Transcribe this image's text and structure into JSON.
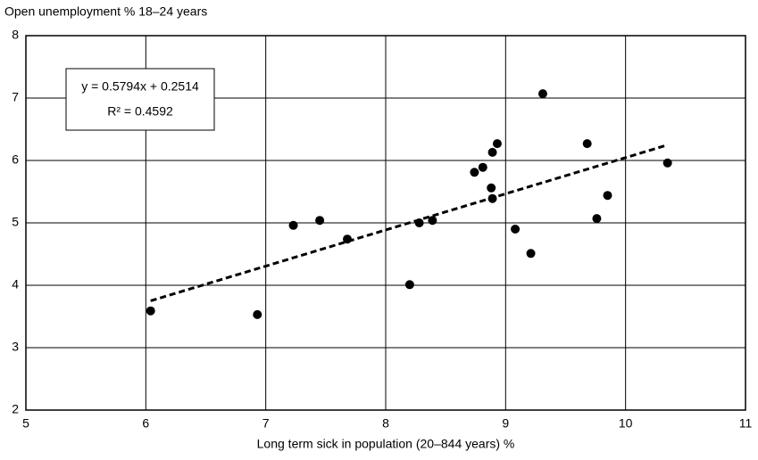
{
  "chart_data": {
    "type": "scatter",
    "title": "Open unemployment % 18–24 years",
    "x_label": "Long term sick in population (20–844 years) %",
    "series": [
      {
        "color": "#000000",
        "x": [
          6.04,
          6.93,
          7.23,
          7.45,
          7.68,
          8.2,
          8.28,
          8.39,
          8.74,
          8.81,
          8.89,
          8.93,
          8.88,
          8.89,
          9.08,
          9.21,
          9.31,
          9.68,
          9.76,
          9.85,
          10.35
        ],
        "values": [
          3.59,
          3.53,
          4.96,
          5.04,
          4.74,
          4.01,
          5.0,
          5.04,
          5.81,
          5.89,
          6.13,
          6.27,
          5.56,
          5.39,
          4.9,
          4.51,
          7.07,
          6.27,
          5.07,
          5.44,
          5.96
        ]
      }
    ],
    "trendline": {
      "slope": 0.5794,
      "intercept": 0.2514,
      "equation": "y = 0.5794x + 0.2514",
      "r_squared": 0.4592,
      "r_squared_label": "R² = 0.4592"
    },
    "xlim": [
      5,
      11
    ],
    "xticks": [
      5,
      6,
      7,
      8,
      9,
      10,
      11
    ],
    "ylim": [
      2,
      8
    ],
    "yticks": [
      2,
      3,
      4,
      5,
      6,
      7,
      8
    ],
    "grid": true
  }
}
